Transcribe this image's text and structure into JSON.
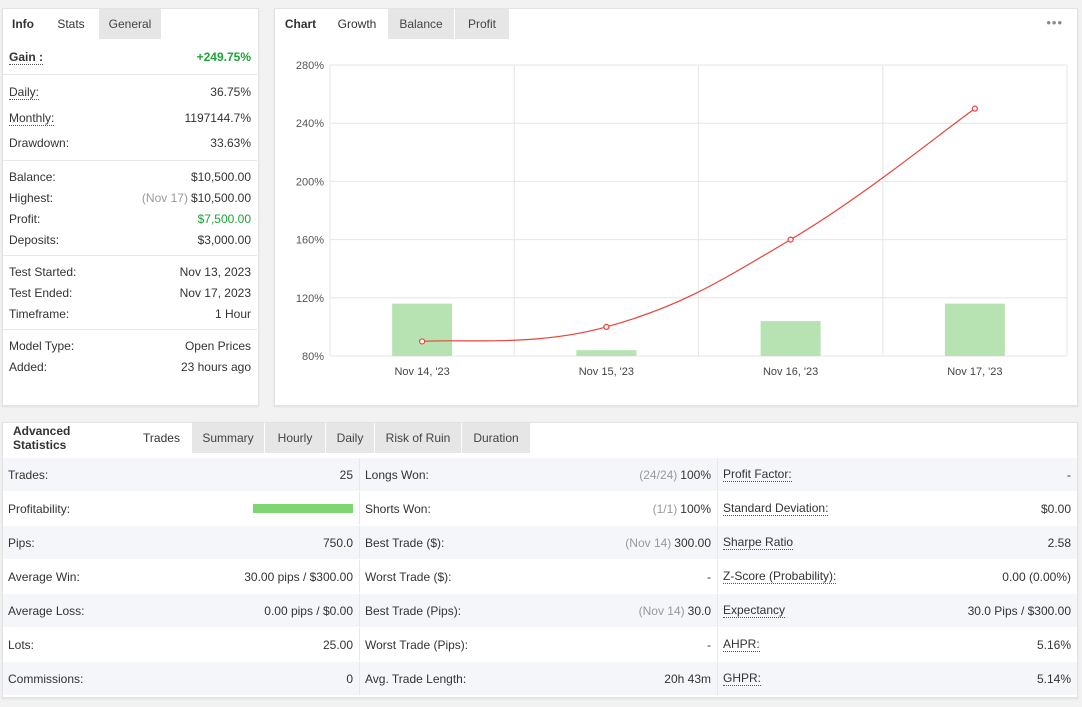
{
  "info_panel": {
    "tabs": [
      "Info",
      "Stats",
      "General"
    ],
    "gain": {
      "label": "Gain :",
      "value": "+249.75%"
    },
    "rows_a": [
      {
        "label": "Daily:",
        "value": "36.75%"
      },
      {
        "label": "Monthly:",
        "value": "1197144.7%"
      },
      {
        "label": "Drawdown:",
        "value": "33.63%"
      }
    ],
    "balance": {
      "label": "Balance:",
      "value": "$10,500.00"
    },
    "highest": {
      "label": "Highest:",
      "date": "(Nov 17)",
      "value": "$10,500.00"
    },
    "profit": {
      "label": "Profit:",
      "value": "$7,500.00"
    },
    "deposits": {
      "label": "Deposits:",
      "value": "$3,000.00"
    },
    "rows_c": [
      {
        "label": "Test Started:",
        "value": "Nov 13, 2023"
      },
      {
        "label": "Test Ended:",
        "value": "Nov 17, 2023"
      },
      {
        "label": "Timeframe:",
        "value": "1 Hour"
      }
    ],
    "rows_d": [
      {
        "label": "Model Type:",
        "value": "Open Prices"
      },
      {
        "label": "Added:",
        "value": "23 hours ago"
      }
    ]
  },
  "chart_panel": {
    "tabs": [
      "Chart",
      "Growth",
      "Balance",
      "Profit"
    ],
    "menu": "•••"
  },
  "chart_data": {
    "type": "line",
    "categories": [
      "Nov 14, '23",
      "Nov 15, '23",
      "Nov 16, '23",
      "Nov 17, '23"
    ],
    "y_ticks": [
      "80%",
      "120%",
      "160%",
      "200%",
      "240%",
      "280%"
    ],
    "ylim": [
      80,
      280
    ],
    "series": [
      {
        "type": "line",
        "color": "#e8423a",
        "values": [
          90,
          100,
          160,
          250
        ]
      },
      {
        "type": "bar",
        "color": "#b7e3b3",
        "values": [
          116,
          84,
          104,
          116
        ]
      }
    ],
    "grid": true
  },
  "advanced": {
    "tabs": [
      "Advanced Statistics",
      "Trades",
      "Summary",
      "Hourly",
      "Daily",
      "Risk of Ruin",
      "Duration"
    ],
    "rows": [
      {
        "c1": {
          "label": "Trades:",
          "value": "25"
        },
        "c2": {
          "label": "Longs Won:",
          "muted": "(24/24)",
          "value": "100%"
        },
        "c3": {
          "label": "Profit Factor:",
          "value": "-"
        }
      },
      {
        "c1": {
          "label": "Profitability:",
          "bar_fraction": 1.0
        },
        "c2": {
          "label": "Shorts Won:",
          "muted": "(1/1)",
          "value": "100%"
        },
        "c3": {
          "label": "Standard Deviation:",
          "value": "$0.00"
        }
      },
      {
        "c1": {
          "label": "Pips:",
          "value": "750.0"
        },
        "c2": {
          "label": "Best Trade ($):",
          "muted": "(Nov 14)",
          "value": "300.00"
        },
        "c3": {
          "label": "Sharpe Ratio",
          "value": "2.58"
        }
      },
      {
        "c1": {
          "label": "Average Win:",
          "value": "30.00 pips / $300.00"
        },
        "c2": {
          "label": "Worst Trade ($):",
          "muted": "",
          "value": "-"
        },
        "c3": {
          "label": "Z-Score (Probability):",
          "value": "0.00 (0.00%)"
        }
      },
      {
        "c1": {
          "label": "Average Loss:",
          "value": "0.00 pips / $0.00"
        },
        "c2": {
          "label": "Best Trade (Pips):",
          "muted": "(Nov 14)",
          "value": "30.0"
        },
        "c3": {
          "label": "Expectancy",
          "value": "30.0 Pips / $300.00"
        }
      },
      {
        "c1": {
          "label": "Lots:",
          "value": "25.00"
        },
        "c2": {
          "label": "Worst Trade (Pips):",
          "muted": "",
          "value": "-"
        },
        "c3": {
          "label": "AHPR:",
          "value": "5.16%"
        }
      },
      {
        "c1": {
          "label": "Commissions:",
          "value": "0"
        },
        "c2": {
          "label": "Avg. Trade Length:",
          "muted": "",
          "value": "20h 43m"
        },
        "c3": {
          "label": "GHPR:",
          "value": "5.14%"
        }
      }
    ]
  }
}
